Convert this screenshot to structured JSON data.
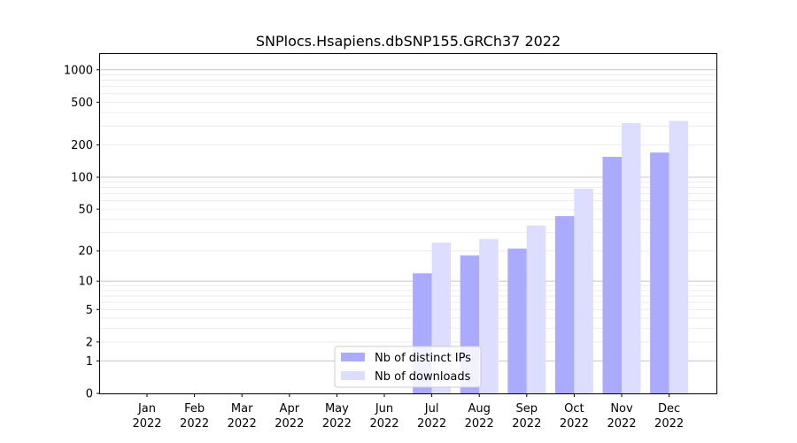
{
  "chart_data": {
    "type": "bar",
    "title": "SNPlocs.Hsapiens.dbSNP155.GRCh37 2022",
    "xlabel": "",
    "ylabel": "",
    "y_scale": "log(y+1)",
    "ylim": [
      0,
      1400
    ],
    "grid": true,
    "legend_position": "lower center",
    "categories": [
      {
        "month": "Jan",
        "year": "2022"
      },
      {
        "month": "Feb",
        "year": "2022"
      },
      {
        "month": "Mar",
        "year": "2022"
      },
      {
        "month": "Apr",
        "year": "2022"
      },
      {
        "month": "May",
        "year": "2022"
      },
      {
        "month": "Jun",
        "year": "2022"
      },
      {
        "month": "Jul",
        "year": "2022"
      },
      {
        "month": "Aug",
        "year": "2022"
      },
      {
        "month": "Sep",
        "year": "2022"
      },
      {
        "month": "Oct",
        "year": "2022"
      },
      {
        "month": "Nov",
        "year": "2022"
      },
      {
        "month": "Dec",
        "year": "2022"
      }
    ],
    "y_ticks": [
      {
        "value": 0,
        "label": "0"
      },
      {
        "value": 1,
        "label": "1"
      },
      {
        "value": 2,
        "label": "2"
      },
      {
        "value": 5,
        "label": "5"
      },
      {
        "value": 10,
        "label": "10"
      },
      {
        "value": 20,
        "label": "20"
      },
      {
        "value": 50,
        "label": "50"
      },
      {
        "value": 100,
        "label": "100"
      },
      {
        "value": 200,
        "label": "200"
      },
      {
        "value": 500,
        "label": "500"
      },
      {
        "value": 1000,
        "label": "1000"
      }
    ],
    "series": [
      {
        "name": "Nb of distinct IPs",
        "color": "#aaaaff",
        "values": [
          0,
          0,
          0,
          0,
          0,
          0,
          12,
          18,
          21,
          43,
          155,
          170
        ]
      },
      {
        "name": "Nb of downloads",
        "color": "#ddddff",
        "values": [
          0,
          0,
          0,
          0,
          0,
          0,
          24,
          26,
          35,
          78,
          320,
          335
        ]
      }
    ]
  }
}
